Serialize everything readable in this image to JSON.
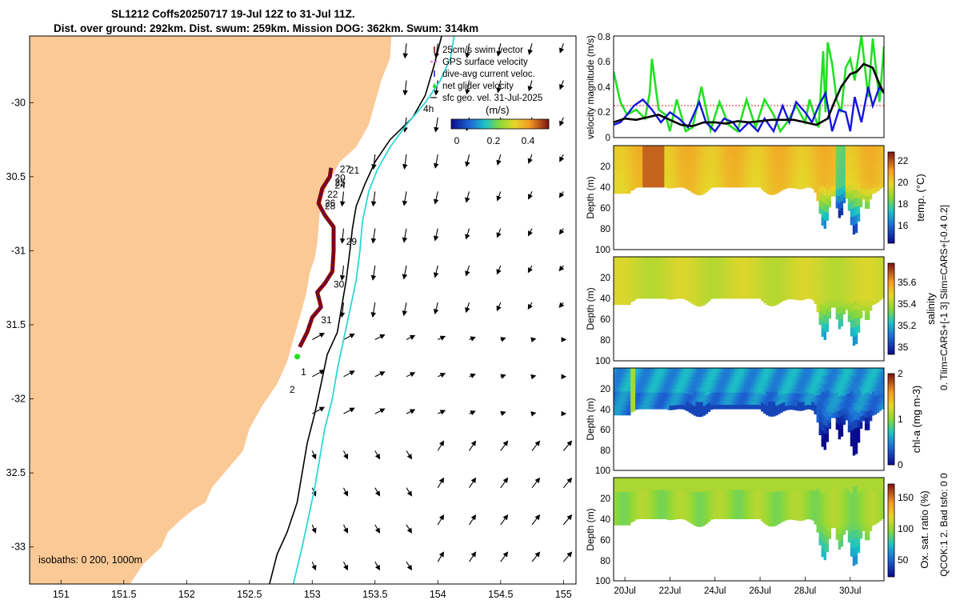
{
  "header": {
    "line1": "SL1212 Coffs20250717 19-Jul 12Z to 31-Jul 11Z.",
    "line2": "Dist. over ground: 292km. Dist. swum: 259km. Mission DOG: 362km. Swum: 314km"
  },
  "colors": {
    "land": "#fbc996",
    "isobath_200": "#000000",
    "isobath_1000": "#2fd6d6",
    "track": "#8b0000",
    "green": "#22e022",
    "blue": "#1414dd",
    "black": "#000000"
  },
  "chart_data": [
    {
      "type": "map",
      "name": "glider track map",
      "xlim": [
        150.75,
        155.1
      ],
      "ylim": [
        -33.25,
        -29.55
      ],
      "xticks": [
        151,
        151.5,
        152,
        152.5,
        153,
        153.5,
        154,
        154.5,
        155
      ],
      "xtick_labels": [
        "151",
        "151.5",
        "152",
        "152.5",
        "153",
        "153.5",
        "154",
        "154.5",
        "155"
      ],
      "yticks": [
        -30,
        -30.5,
        -31,
        -31.5,
        -32,
        -32.5,
        -33
      ],
      "ytick_labels": [
        "-30",
        "30.5",
        "-31",
        "31.5",
        "-32",
        "32.5",
        "-33"
      ],
      "legend": [
        "25cm/s swim vector",
        "GPS surface velocity",
        "dive-avg current veloc.",
        "net glider velocity",
        "sfc geo. vel. 31-Jul-2025"
      ],
      "legend_extra": "4h",
      "colorbar": {
        "label": "(m/s)",
        "ticks": [
          "0",
          "0.2",
          "0.4"
        ],
        "range": [
          0,
          0.5
        ]
      },
      "isobath_label": "isobaths: 0   200, 1000m",
      "coast": [
        [
          153.63,
          -29.55
        ],
        [
          153.62,
          -29.7
        ],
        [
          153.55,
          -29.85
        ],
        [
          153.5,
          -30.0
        ],
        [
          153.45,
          -30.15
        ],
        [
          153.35,
          -30.3
        ],
        [
          153.22,
          -30.4
        ],
        [
          153.12,
          -30.55
        ],
        [
          153.08,
          -30.65
        ],
        [
          153.06,
          -30.75
        ],
        [
          153.05,
          -30.85
        ],
        [
          153.04,
          -30.95
        ],
        [
          153.02,
          -31.05
        ],
        [
          152.98,
          -31.15
        ],
        [
          152.95,
          -31.3
        ],
        [
          152.9,
          -31.45
        ],
        [
          152.85,
          -31.6
        ],
        [
          152.8,
          -31.75
        ],
        [
          152.72,
          -31.9
        ],
        [
          152.6,
          -32.05
        ],
        [
          152.5,
          -32.2
        ],
        [
          152.45,
          -32.35
        ],
        [
          152.3,
          -32.5
        ],
        [
          152.2,
          -32.6
        ],
        [
          152.15,
          -32.7
        ],
        [
          152.05,
          -32.75
        ],
        [
          151.95,
          -32.82
        ],
        [
          151.85,
          -32.9
        ],
        [
          151.8,
          -33.0
        ],
        [
          151.65,
          -33.12
        ],
        [
          151.55,
          -33.25
        ]
      ],
      "isobath_200": [
        [
          154.03,
          -29.55
        ],
        [
          153.97,
          -29.75
        ],
        [
          153.9,
          -29.95
        ],
        [
          153.8,
          -30.1
        ],
        [
          153.62,
          -30.25
        ],
        [
          153.5,
          -30.4
        ],
        [
          153.42,
          -30.55
        ],
        [
          153.35,
          -30.7
        ],
        [
          153.32,
          -30.85
        ],
        [
          153.3,
          -31.0
        ],
        [
          153.27,
          -31.2
        ],
        [
          153.23,
          -31.4
        ],
        [
          153.2,
          -31.55
        ],
        [
          153.12,
          -31.7
        ],
        [
          153.07,
          -31.9
        ],
        [
          153.02,
          -32.1
        ],
        [
          152.96,
          -32.3
        ],
        [
          152.92,
          -32.5
        ],
        [
          152.88,
          -32.7
        ],
        [
          152.8,
          -32.9
        ],
        [
          152.72,
          -33.05
        ],
        [
          152.66,
          -33.25
        ]
      ],
      "isobath_1000": [
        [
          154.13,
          -29.55
        ],
        [
          154.1,
          -29.7
        ],
        [
          154.02,
          -29.85
        ],
        [
          153.9,
          -30.0
        ],
        [
          153.75,
          -30.15
        ],
        [
          153.62,
          -30.3
        ],
        [
          153.52,
          -30.45
        ],
        [
          153.45,
          -30.6
        ],
        [
          153.4,
          -30.8
        ],
        [
          153.38,
          -31.0
        ],
        [
          153.35,
          -31.2
        ],
        [
          153.3,
          -31.4
        ],
        [
          153.25,
          -31.6
        ],
        [
          153.2,
          -31.8
        ],
        [
          153.16,
          -32.0
        ],
        [
          153.1,
          -32.2
        ],
        [
          153.06,
          -32.4
        ],
        [
          153.02,
          -32.6
        ],
        [
          152.97,
          -32.8
        ],
        [
          152.92,
          -33.0
        ],
        [
          152.85,
          -33.25
        ]
      ],
      "track": [
        [
          153.15,
          -30.44
        ],
        [
          153.14,
          -30.5
        ],
        [
          153.08,
          -30.58
        ],
        [
          153.05,
          -30.68
        ],
        [
          153.1,
          -30.76
        ],
        [
          153.17,
          -30.84
        ],
        [
          153.17,
          -31.0
        ],
        [
          153.16,
          -31.14
        ],
        [
          153.1,
          -31.22
        ],
        [
          153.04,
          -31.28
        ],
        [
          153.07,
          -31.38
        ],
        [
          153.0,
          -31.45
        ],
        [
          152.96,
          -31.55
        ],
        [
          152.9,
          -31.65
        ]
      ],
      "day_labels": [
        {
          "text": "27",
          "lon": 153.22,
          "lat": -30.47
        },
        {
          "text": "21",
          "lon": 153.29,
          "lat": -30.48
        },
        {
          "text": "20",
          "lon": 153.18,
          "lat": -30.53
        },
        {
          "text": "25",
          "lon": 153.18,
          "lat": -30.56
        },
        {
          "text": "24",
          "lon": 153.18,
          "lat": -30.58
        },
        {
          "text": "22",
          "lon": 153.12,
          "lat": -30.64
        },
        {
          "text": "26",
          "lon": 153.1,
          "lat": -30.7
        },
        {
          "text": "28",
          "lon": 153.1,
          "lat": -30.72
        },
        {
          "text": "29",
          "lon": 153.27,
          "lat": -30.96
        },
        {
          "text": "30",
          "lon": 153.17,
          "lat": -31.25
        },
        {
          "text": "31",
          "lon": 153.07,
          "lat": -31.49
        },
        {
          "text": "1",
          "lon": 152.91,
          "lat": -31.84
        },
        {
          "text": "2",
          "lon": 152.82,
          "lat": -31.96
        }
      ]
    },
    {
      "type": "line",
      "name": "velocity magnitude",
      "ylabel": "velocity magnitude (m/s)",
      "ylim": [
        0,
        0.8
      ],
      "yticks": [
        0,
        0.2,
        0.4,
        0.6,
        0.8
      ],
      "ytick_labels": [
        "0",
        "0.2",
        "0.4",
        "0.6",
        "0.8"
      ],
      "xlim": [
        19.5,
        31.5
      ],
      "series": [
        {
          "name": "net glider velocity",
          "color": "#22e022",
          "x": [
            19.5,
            19.8,
            20.1,
            20.5,
            20.9,
            21.1,
            21.2,
            21.5,
            21.8,
            22.0,
            22.3,
            22.7,
            23.0,
            23.4,
            23.8,
            24.2,
            24.6,
            25.0,
            25.4,
            25.8,
            26.2,
            26.6,
            26.9,
            27.2,
            27.6,
            28.0,
            28.2,
            28.4,
            28.6,
            28.8,
            28.9,
            29.0,
            29.2,
            29.4,
            29.6,
            29.8,
            30.0,
            30.2,
            30.5,
            30.8,
            31.0,
            31.3,
            31.5
          ],
          "y": [
            0.52,
            0.28,
            0.18,
            0.22,
            0.15,
            0.35,
            0.62,
            0.22,
            0.18,
            0.05,
            0.3,
            0.05,
            0.08,
            0.4,
            0.06,
            0.28,
            0.1,
            0.05,
            0.3,
            0.08,
            0.3,
            0.18,
            0.05,
            0.12,
            0.25,
            0.12,
            0.3,
            0.18,
            0.08,
            0.68,
            0.2,
            0.75,
            0.58,
            0.3,
            0.2,
            0.55,
            0.62,
            0.45,
            0.8,
            0.32,
            0.78,
            0.28,
            0.72
          ]
        },
        {
          "name": "dive-avg current veloc.",
          "color": "#1414dd",
          "x": [
            19.5,
            19.8,
            20.1,
            20.4,
            20.8,
            21.2,
            21.6,
            22.0,
            22.4,
            22.8,
            23.1,
            23.3,
            23.6,
            24.0,
            24.4,
            24.8,
            25.1,
            25.5,
            25.9,
            26.2,
            26.6,
            26.8,
            27.0,
            27.3,
            27.6,
            28.0,
            28.3,
            28.6,
            28.9,
            29.2,
            29.5,
            29.8,
            30.0,
            30.2,
            30.5,
            30.8,
            31.0,
            31.3,
            31.5
          ],
          "y": [
            0.1,
            0.12,
            0.18,
            0.25,
            0.3,
            0.22,
            0.12,
            0.2,
            0.15,
            0.08,
            0.2,
            0.28,
            0.12,
            0.05,
            0.15,
            0.12,
            0.05,
            0.12,
            0.05,
            0.15,
            0.05,
            0.15,
            0.25,
            0.12,
            0.28,
            0.2,
            0.12,
            0.25,
            0.35,
            0.05,
            0.22,
            0.2,
            0.05,
            0.32,
            0.12,
            0.4,
            0.25,
            0.4,
            0.35
          ]
        },
        {
          "name": "speed",
          "color": "#000000",
          "x": [
            19.5,
            20.0,
            20.5,
            21.0,
            21.5,
            22.0,
            22.5,
            23.0,
            23.5,
            24.0,
            24.5,
            25.0,
            25.5,
            26.0,
            26.5,
            27.0,
            27.5,
            28.0,
            28.5,
            29.0,
            29.3,
            29.6,
            30.0,
            30.3,
            30.6,
            31.0,
            31.3,
            31.5
          ],
          "y": [
            0.12,
            0.15,
            0.14,
            0.16,
            0.18,
            0.14,
            0.1,
            0.09,
            0.12,
            0.12,
            0.11,
            0.13,
            0.12,
            0.13,
            0.14,
            0.14,
            0.14,
            0.12,
            0.1,
            0.15,
            0.28,
            0.4,
            0.5,
            0.52,
            0.58,
            0.55,
            0.42,
            0.35
          ]
        }
      ]
    },
    {
      "type": "heatmap",
      "name": "temperature",
      "ylabel": "Depth (m)",
      "cbar_label": "temp. (°C)",
      "cbar_ticks": [
        "22",
        "20",
        "18",
        "16"
      ],
      "cbar_range": [
        14.5,
        23.0
      ],
      "ylim": [
        0,
        100
      ],
      "yticks": [
        "20",
        "40",
        "60",
        "80",
        "100"
      ]
    },
    {
      "type": "heatmap",
      "name": "salinity",
      "ylabel": "Depth (m)",
      "cbar_label": "salinity",
      "cbar_ticks": [
        "35.6",
        "35.4",
        "35.2",
        "35"
      ],
      "cbar_range": [
        34.9,
        35.8
      ],
      "ylim": [
        0,
        100
      ],
      "yticks": [
        "20",
        "40",
        "60",
        "80",
        "100"
      ]
    },
    {
      "type": "heatmap",
      "name": "chlorophyll",
      "ylabel": "Depth (m)",
      "cbar_label": "chl-a (mg m-3)",
      "cbar_ticks": [
        "2",
        "1",
        "0"
      ],
      "cbar_range": [
        0,
        2
      ],
      "ylim": [
        0,
        100
      ],
      "yticks": [
        "20",
        "40",
        "60",
        "80",
        "100"
      ]
    },
    {
      "type": "heatmap",
      "name": "oxygen",
      "ylabel": "Depth (m)",
      "cbar_label": "Ox. sat. ratio (%)",
      "cbar_ticks": [
        "150",
        "100",
        "50"
      ],
      "cbar_range": [
        20,
        175
      ],
      "ylim": [
        0,
        100
      ],
      "yticks": [
        "20",
        "40",
        "60",
        "80",
        "100"
      ],
      "xlim": [
        19.5,
        31.5
      ],
      "xtick_values": [
        20,
        22,
        24,
        26,
        28,
        30
      ],
      "xtick_labels": [
        "20Jul",
        "22Jul",
        "24Jul",
        "26Jul",
        "28Jul",
        "30Jul"
      ]
    }
  ],
  "side_note_1": "0. Tlim=CARS+[-1 3] Slim=CARS+[-0.4 0.2]",
  "side_note_2": "QCOK:1  2. Bad tsfo: 0  0"
}
